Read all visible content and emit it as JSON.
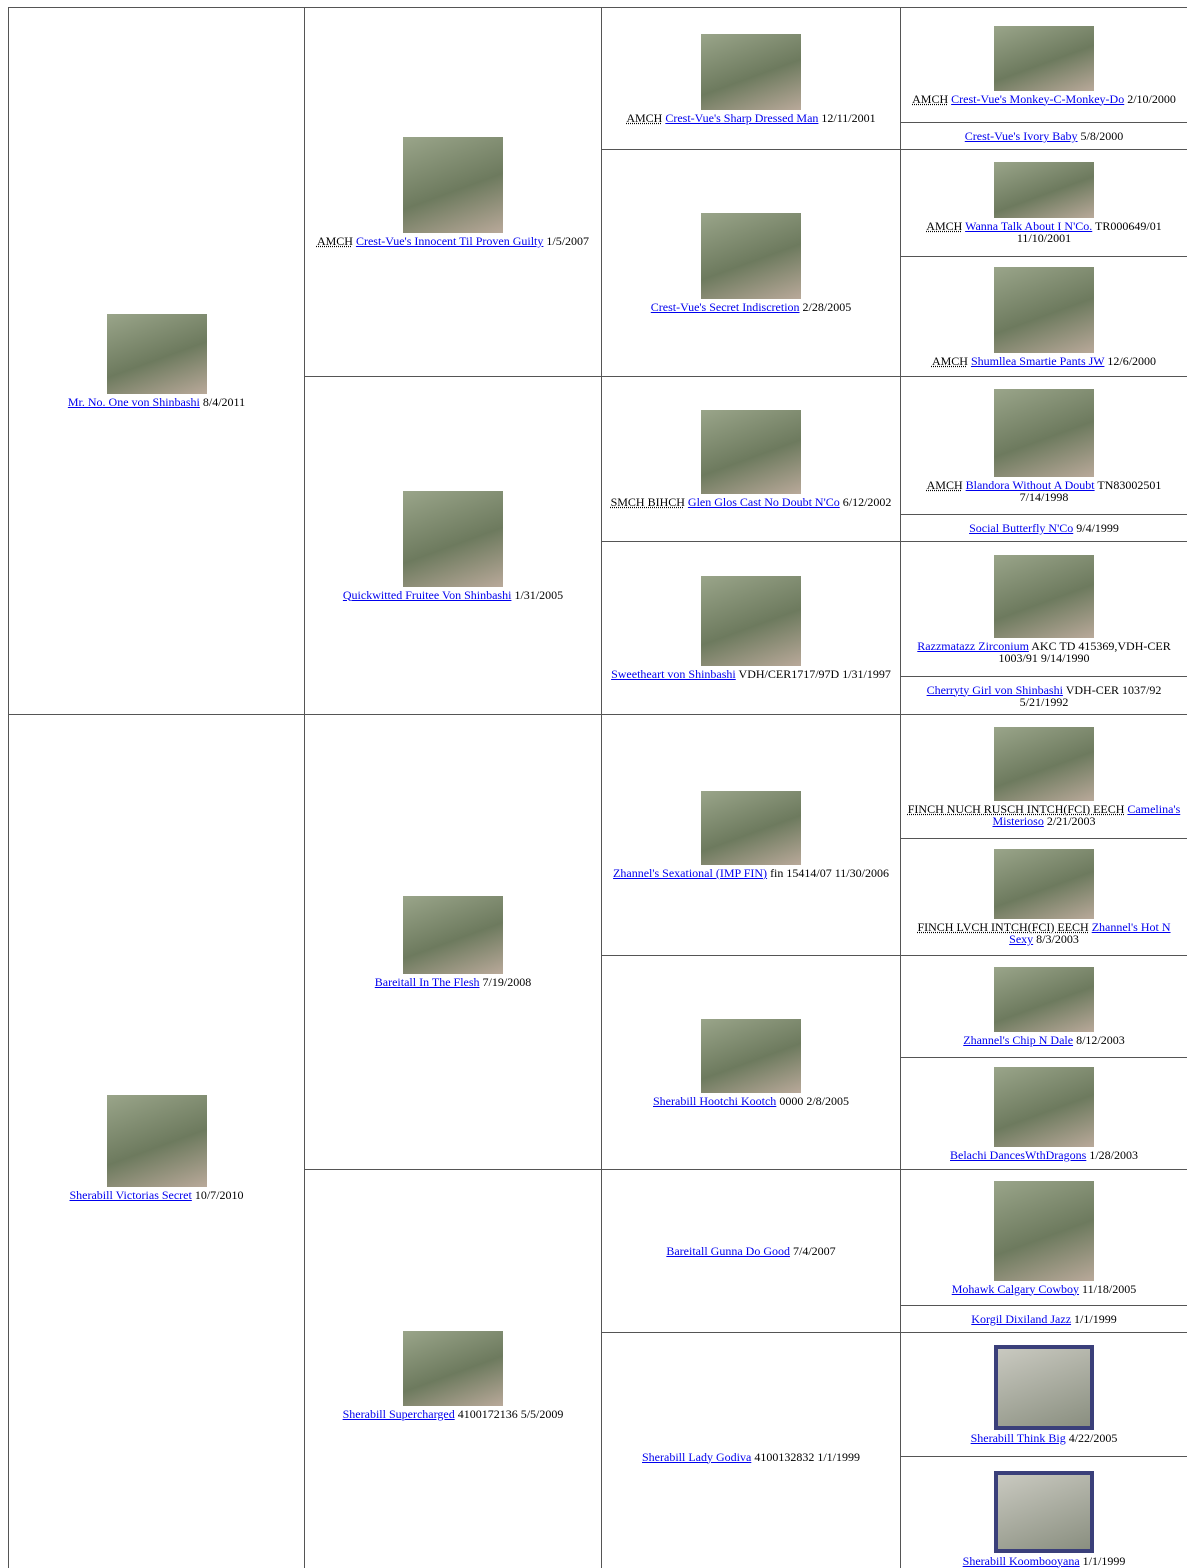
{
  "columns": [
    [
      {
        "name": "Mr. No. One von Shinbashi",
        "info": "8/4/2011"
      },
      {
        "name": "Sherabill Victorias Secret",
        "info": "10/7/2010"
      }
    ],
    [
      {
        "title": "AMCH",
        "name": "Crest-Vue's Innocent Til Proven Guilty",
        "info": "1/5/2007"
      },
      {
        "name": "Quickwitted Fruitee Von Shinbashi",
        "info": "1/31/2005"
      },
      {
        "name": "Bareitall In The Flesh",
        "info": "7/19/2008"
      },
      {
        "name": "Sherabill Supercharged",
        "info": "4100172136 5/5/2009"
      }
    ],
    [
      {
        "title": "AMCH",
        "name": "Crest-Vue's Sharp Dressed Man",
        "info": "12/11/2001"
      },
      {
        "name": "Crest-Vue's Secret Indiscretion",
        "info": "2/28/2005"
      },
      {
        "title": "SMCH BIHCH",
        "name": "Glen Glos Cast No Doubt N'Co",
        "info": "6/12/2002"
      },
      {
        "name": "Sweetheart von Shinbashi",
        "info": "VDH/CER1717/97D 1/31/1997"
      },
      {
        "name": "Zhannel's Sexational (IMP FIN)",
        "info": "fin 15414/07 11/30/2006"
      },
      {
        "name": "Sherabill Hootchi Kootch",
        "info": "0000 2/8/2005"
      },
      {
        "name": "Bareitall Gunna Do Good",
        "info": "7/4/2007"
      },
      {
        "name": "Sherabill Lady Godiva",
        "info": "4100132832 1/1/1999"
      }
    ],
    [
      {
        "title": "AMCH",
        "name": "Crest-Vue's Monkey-C-Monkey-Do",
        "info": "2/10/2000"
      },
      {
        "name": "Crest-Vue's Ivory Baby",
        "info": "5/8/2000"
      },
      {
        "title": "AMCH",
        "name": "Wanna Talk About I N'Co.",
        "info": "TR000649/01 11/10/2001"
      },
      {
        "title": "AMCH",
        "name": "Shumllea Smartie Pants JW",
        "info": "12/6/2000"
      },
      {
        "title": "AMCH",
        "name": "Blandora Without A Doubt",
        "info": "TN83002501 7/14/1998"
      },
      {
        "name": "Social Butterfly N'Co",
        "info": "9/4/1999"
      },
      {
        "name": "Razzmatazz Zirconium",
        "info": "AKC TD 415369,VDH-CER 1003/91 9/14/1990"
      },
      {
        "name": "Cherryty Girl von Shinbashi",
        "info": "VDH-CER 1037/92 5/21/1992"
      },
      {
        "title": "FINCH NUCH RUSCH INTCH(FCI) EECH",
        "name": "Camelina's Misterioso",
        "info": "2/21/2003"
      },
      {
        "title": "FINCH LVCH INTCH(FCI) EECH",
        "name": "Zhannel's Hot N Sexy",
        "info": "8/3/2003"
      },
      {
        "name": "Zhannel's Chip N Dale",
        "info": "8/12/2003"
      },
      {
        "name": "Belachi DancesWthDragons",
        "info": "1/28/2003"
      },
      {
        "name": "Mohawk Calgary Cowboy",
        "info": "11/18/2005"
      },
      {
        "name": "Korgil Dixiland Jazz",
        "info": "1/1/1999"
      },
      {
        "name": "Sherabill Think Big",
        "info": "4/22/2005"
      },
      {
        "name": "Sherabill Koombooyana",
        "info": "1/1/1999"
      }
    ]
  ]
}
